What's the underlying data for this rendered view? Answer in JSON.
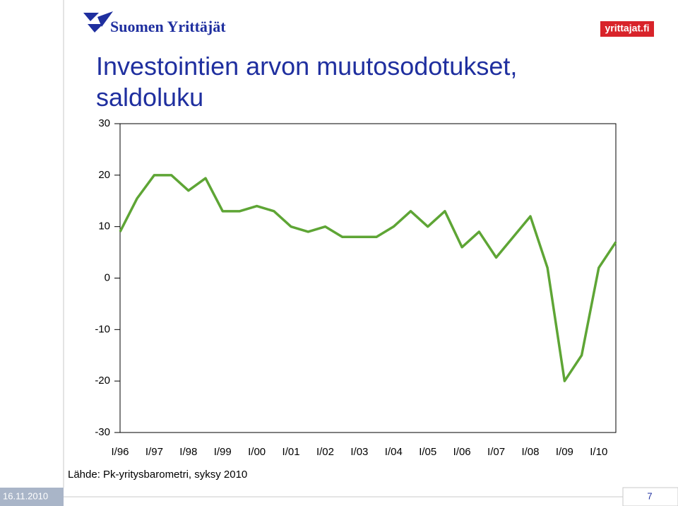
{
  "logo": "Suomen Yrittäjät",
  "site": "yrittajat.fi",
  "source": "Lähde: Pk-yritysbarometri, syksy 2010",
  "date": "16.11.2010",
  "page": "7",
  "chart_data": {
    "type": "line",
    "title": "Investointien arvon muutosodotukset, saldoluku",
    "categories": [
      "I/96",
      null,
      "I/97",
      null,
      "I/98",
      null,
      "I/99",
      null,
      "I/00",
      null,
      "I/01",
      null,
      "I/02",
      null,
      "I/03",
      null,
      "I/04",
      null,
      "I/05",
      null,
      "I/06",
      null,
      "I/07",
      null,
      "I/08",
      null,
      "I/09",
      null,
      "I/10",
      null
    ],
    "series": [
      {
        "name": "saldoluku",
        "color": "#5ea535",
        "values": [
          9,
          15.5,
          20,
          20,
          17,
          19.4,
          13,
          13,
          14,
          13,
          10,
          9,
          10,
          8,
          8,
          8,
          10,
          13,
          10,
          13,
          6,
          9,
          4,
          8,
          12,
          2,
          -20,
          -15,
          2,
          7
        ]
      }
    ],
    "ylim": [
      -30,
      30
    ],
    "yticks": [
      -30,
      -20,
      -10,
      0,
      10,
      20,
      30
    ]
  }
}
